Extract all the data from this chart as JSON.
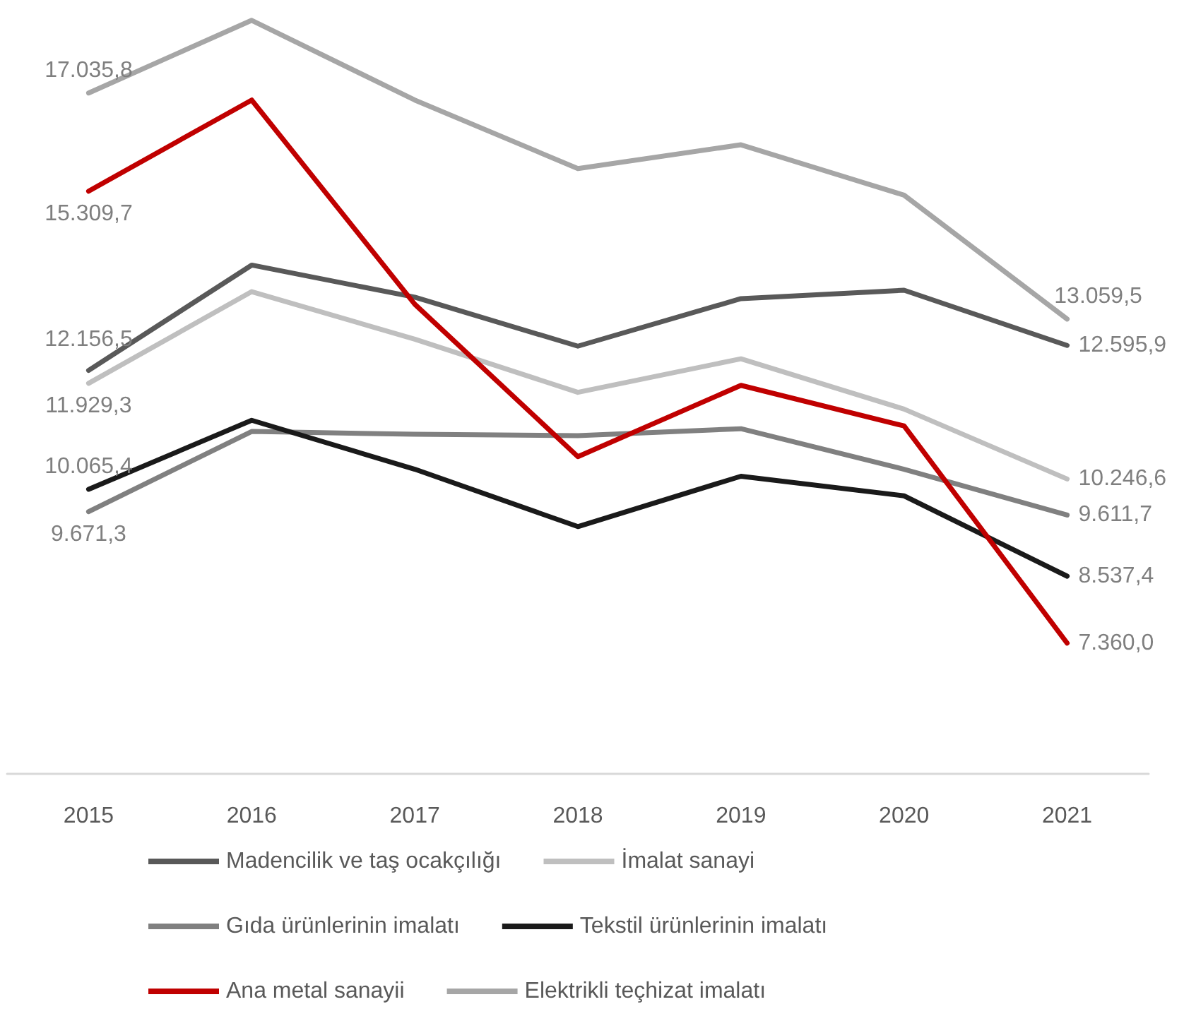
{
  "chart_data": {
    "type": "line",
    "categories": [
      "2015",
      "2016",
      "2017",
      "2018",
      "2019",
      "2020",
      "2021"
    ],
    "tick_labels": "x",
    "grid": false,
    "legend": "bottom",
    "marker": "none",
    "line_style": "solid",
    "series": [
      {
        "name": "Madencilik ve taş ocakçılığı",
        "color": "#595959",
        "values": [
          12156.5,
          14009,
          13444,
          12583,
          13419,
          13567,
          12595.9
        ],
        "value_labels": [
          "12.156,5",
          null,
          null,
          null,
          null,
          null,
          "12.595,9"
        ]
      },
      {
        "name": "İmalat sanayi",
        "color": "#bfbfbf",
        "values": [
          11929.3,
          13542,
          12706,
          11771,
          12361,
          11476,
          10246.6
        ],
        "value_labels": [
          "11.929,3",
          null,
          null,
          null,
          null,
          null,
          "10.246,6"
        ]
      },
      {
        "name": "Gıda ürünlerinin imalatı",
        "color": "#808080",
        "values": [
          9671.3,
          11082,
          11033,
          11008,
          11131,
          10418,
          9611.7
        ],
        "value_labels": [
          "9.671,3",
          null,
          null,
          null,
          null,
          null,
          "9.611,7"
        ]
      },
      {
        "name": "Tekstil ürünlerinin imalatı",
        "color": "#1a1a1a",
        "values": [
          10065.4,
          11279,
          10418,
          9409,
          10295,
          9950,
          8537.4
        ],
        "value_labels": [
          "10.065,4",
          null,
          null,
          null,
          null,
          null,
          "8.537,4"
        ]
      },
      {
        "name": "Ana metal sanayii",
        "color": "#c00000",
        "values": [
          15309.7,
          16912,
          13321,
          10639,
          11894,
          11180,
          7360.0
        ],
        "value_labels": [
          "15.309,7",
          null,
          null,
          null,
          null,
          null,
          "7.360,0"
        ]
      },
      {
        "name": "Elektrikli teçhizat imalatı",
        "color": "#a6a6a6",
        "values": [
          17035.8,
          18314,
          16912,
          15707,
          16125,
          15239,
          13059.5
        ],
        "value_labels": [
          "17.035,8",
          null,
          null,
          null,
          null,
          null,
          "13.059,5"
        ]
      }
    ]
  }
}
